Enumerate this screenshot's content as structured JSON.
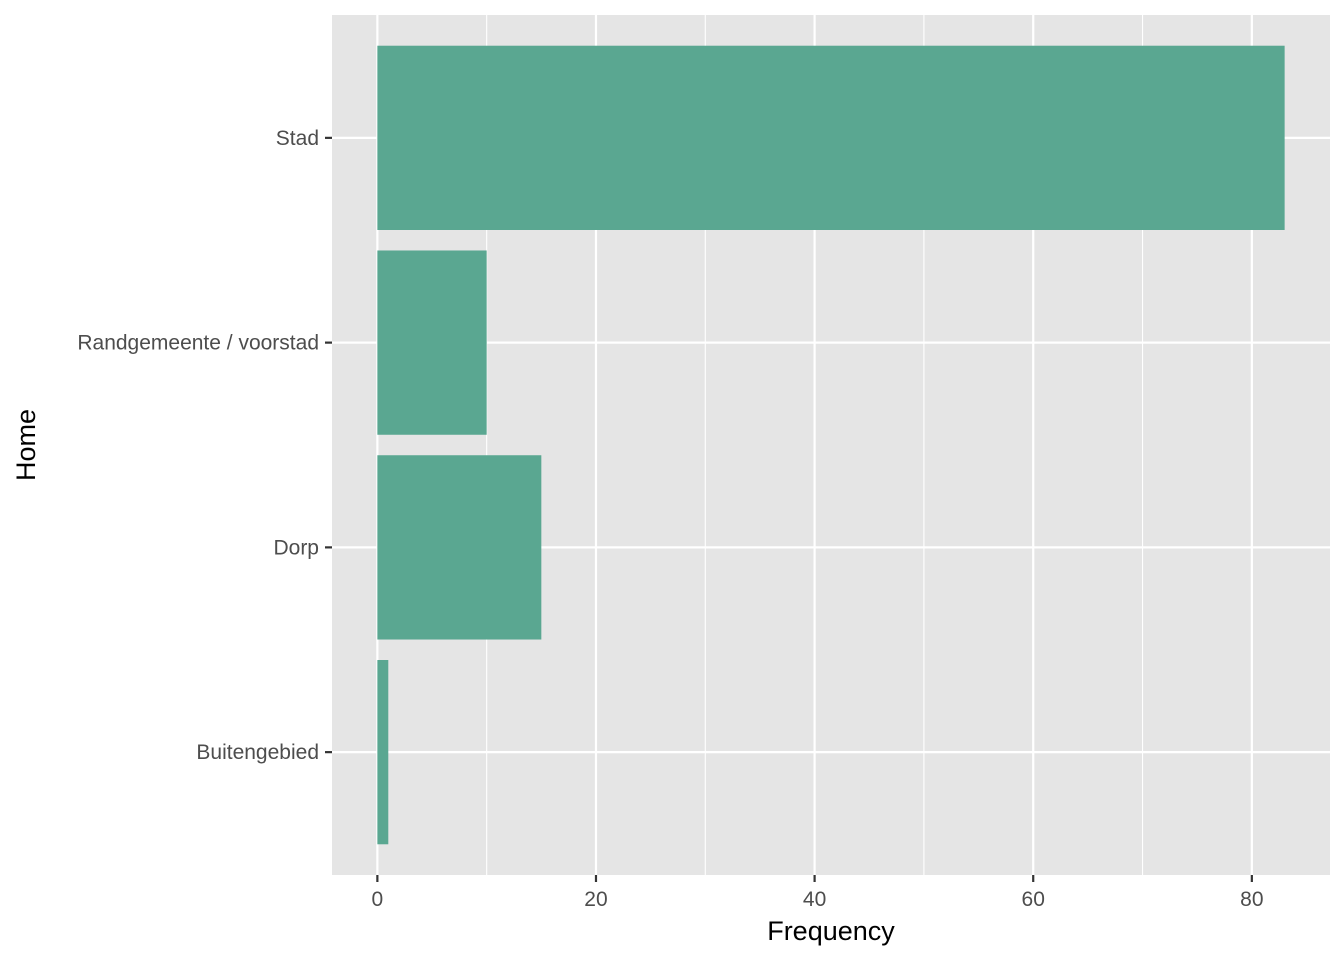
{
  "chart_data": {
    "type": "bar",
    "orientation": "horizontal",
    "categories": [
      "Stad",
      "Randgemeente / voorstad",
      "Dorp",
      "Buitengebied"
    ],
    "values": [
      83,
      10,
      15,
      1
    ],
    "xlabel": "Frequency",
    "ylabel": "Home",
    "xlim": [
      -4.15,
      87.15
    ],
    "xticks": [
      0,
      20,
      40,
      60,
      80
    ],
    "grid": true,
    "legend": "none",
    "colors": {
      "bar": "#5aa791",
      "panel": "#e5e5e5",
      "grid": "#ffffff",
      "background": "#ffffff"
    }
  }
}
